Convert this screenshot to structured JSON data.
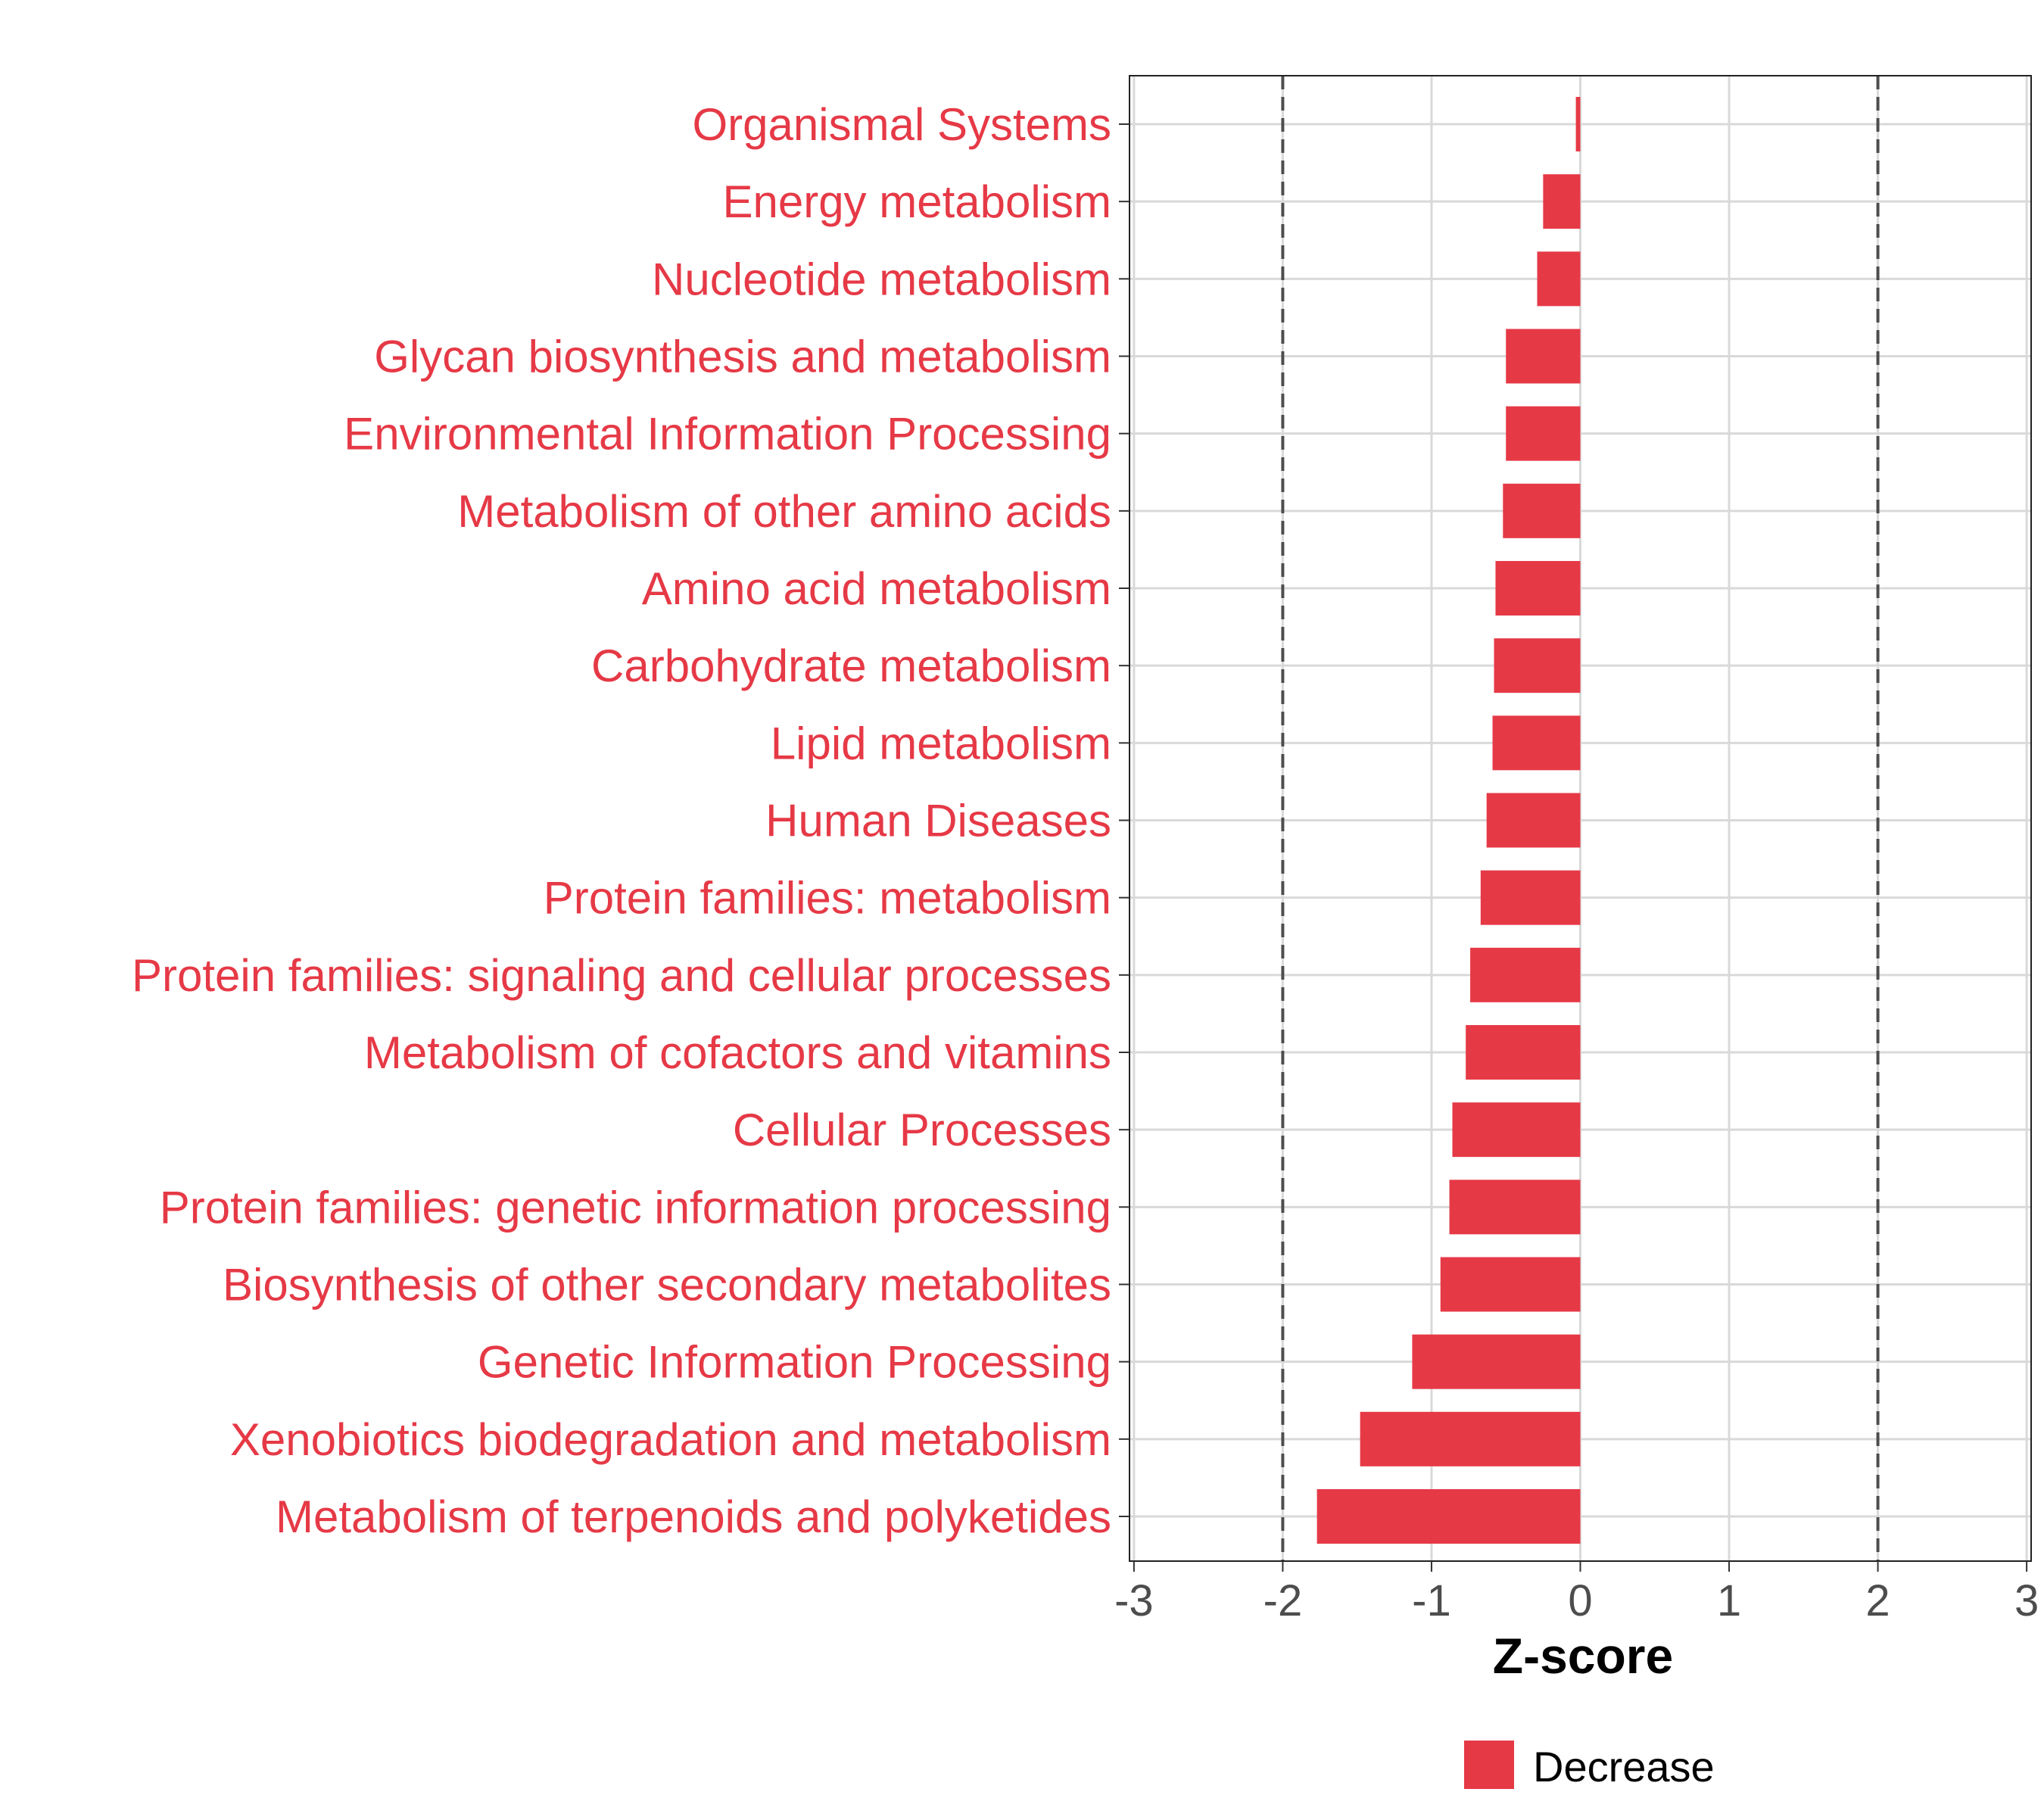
{
  "chart_data": {
    "type": "bar",
    "orientation": "horizontal",
    "title": "",
    "xlabel": "Z-score",
    "ylabel": "",
    "xlim": [
      -3,
      3
    ],
    "xticks": [
      -3,
      -2,
      -1,
      0,
      1,
      2,
      3
    ],
    "reference_lines": [
      -2,
      2
    ],
    "grid": true,
    "categories": [
      "Organismal Systems",
      "Energy metabolism",
      "Nucleotide metabolism",
      "Glycan biosynthesis and metabolism",
      "Environmental Information Processing",
      "Metabolism of other amino acids",
      "Amino acid metabolism",
      "Carbohydrate metabolism",
      "Lipid metabolism",
      "Human Diseases",
      "Protein families: metabolism",
      "Protein families: signaling and cellular processes",
      "Metabolism of cofactors and vitamins",
      "Cellular Processes",
      "Protein families: genetic information processing",
      "Biosynthesis of other secondary metabolites",
      "Genetic Information Processing",
      "Xenobiotics biodegradation and metabolism",
      "Metabolism of terpenoids and polyketides"
    ],
    "values": [
      -0.03,
      -0.25,
      -0.29,
      -0.5,
      -0.5,
      -0.52,
      -0.57,
      -0.58,
      -0.59,
      -0.63,
      -0.67,
      -0.74,
      -0.77,
      -0.86,
      -0.88,
      -0.94,
      -1.13,
      -1.48,
      -1.77
    ],
    "legend": {
      "entries": [
        {
          "label": "Decrease",
          "color": "#E63946"
        }
      ],
      "position": "bottom"
    },
    "colors": {
      "bar": "#E63946",
      "label": "#E63946",
      "grid": "#D9D9D9",
      "refline": "#4D4D4D"
    }
  }
}
